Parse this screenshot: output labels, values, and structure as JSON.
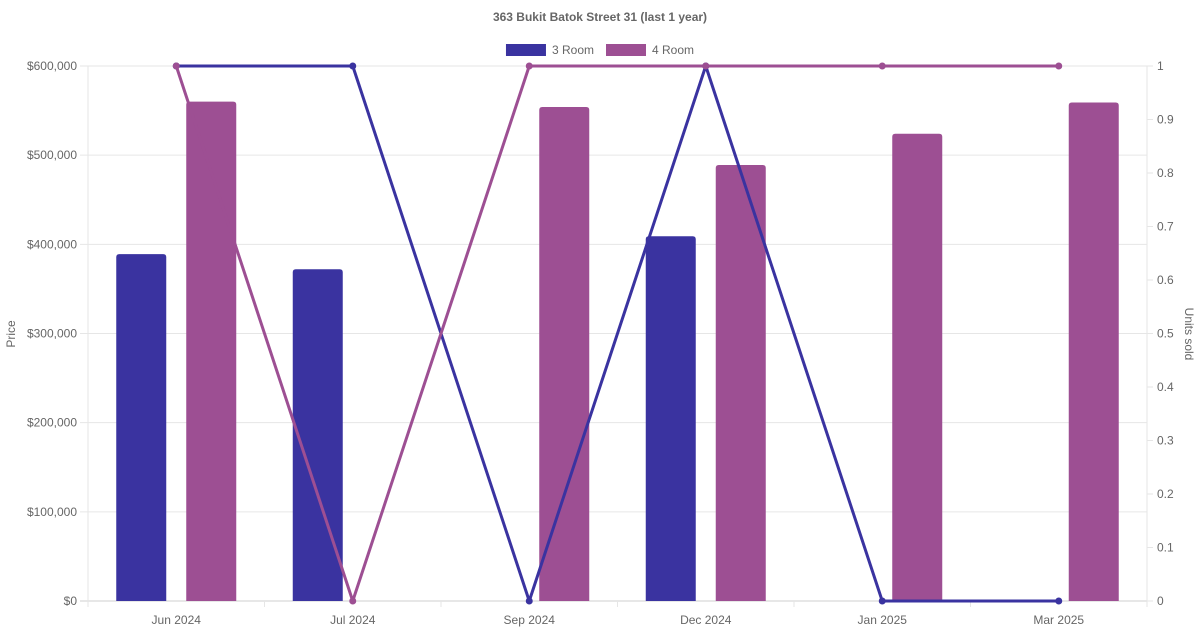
{
  "chart_data": {
    "type": "bar",
    "title": "363 Bukit Batok Street 31 (last 1 year)",
    "categories": [
      "Jun 2024",
      "Jul 2024",
      "Sep 2024",
      "Dec 2024",
      "Jan 2025",
      "Mar 2025"
    ],
    "ylabel": "Price",
    "y2label": "Units sold",
    "ylim": [
      0,
      600000
    ],
    "y2lim": [
      0,
      1
    ],
    "y_ticks": [
      "$0",
      "$100,000",
      "$200,000",
      "$300,000",
      "$400,000",
      "$500,000",
      "$600,000"
    ],
    "y2_ticks": [
      "0",
      "0.1",
      "0.2",
      "0.3",
      "0.4",
      "0.5",
      "0.6",
      "0.7",
      "0.8",
      "0.9",
      "1"
    ],
    "legend_position": "top",
    "grid": true,
    "series": [
      {
        "name": "3 Room",
        "color": "#3a33a0",
        "price": [
          389000,
          372000,
          null,
          409000,
          null,
          null
        ],
        "units_sold": [
          1,
          1,
          0,
          1,
          0,
          0
        ]
      },
      {
        "name": "4 Room",
        "color": "#9d4f93",
        "price": [
          560000,
          null,
          554000,
          489000,
          524000,
          559000
        ],
        "units_sold": [
          1,
          0,
          1,
          1,
          1,
          1
        ]
      }
    ]
  }
}
